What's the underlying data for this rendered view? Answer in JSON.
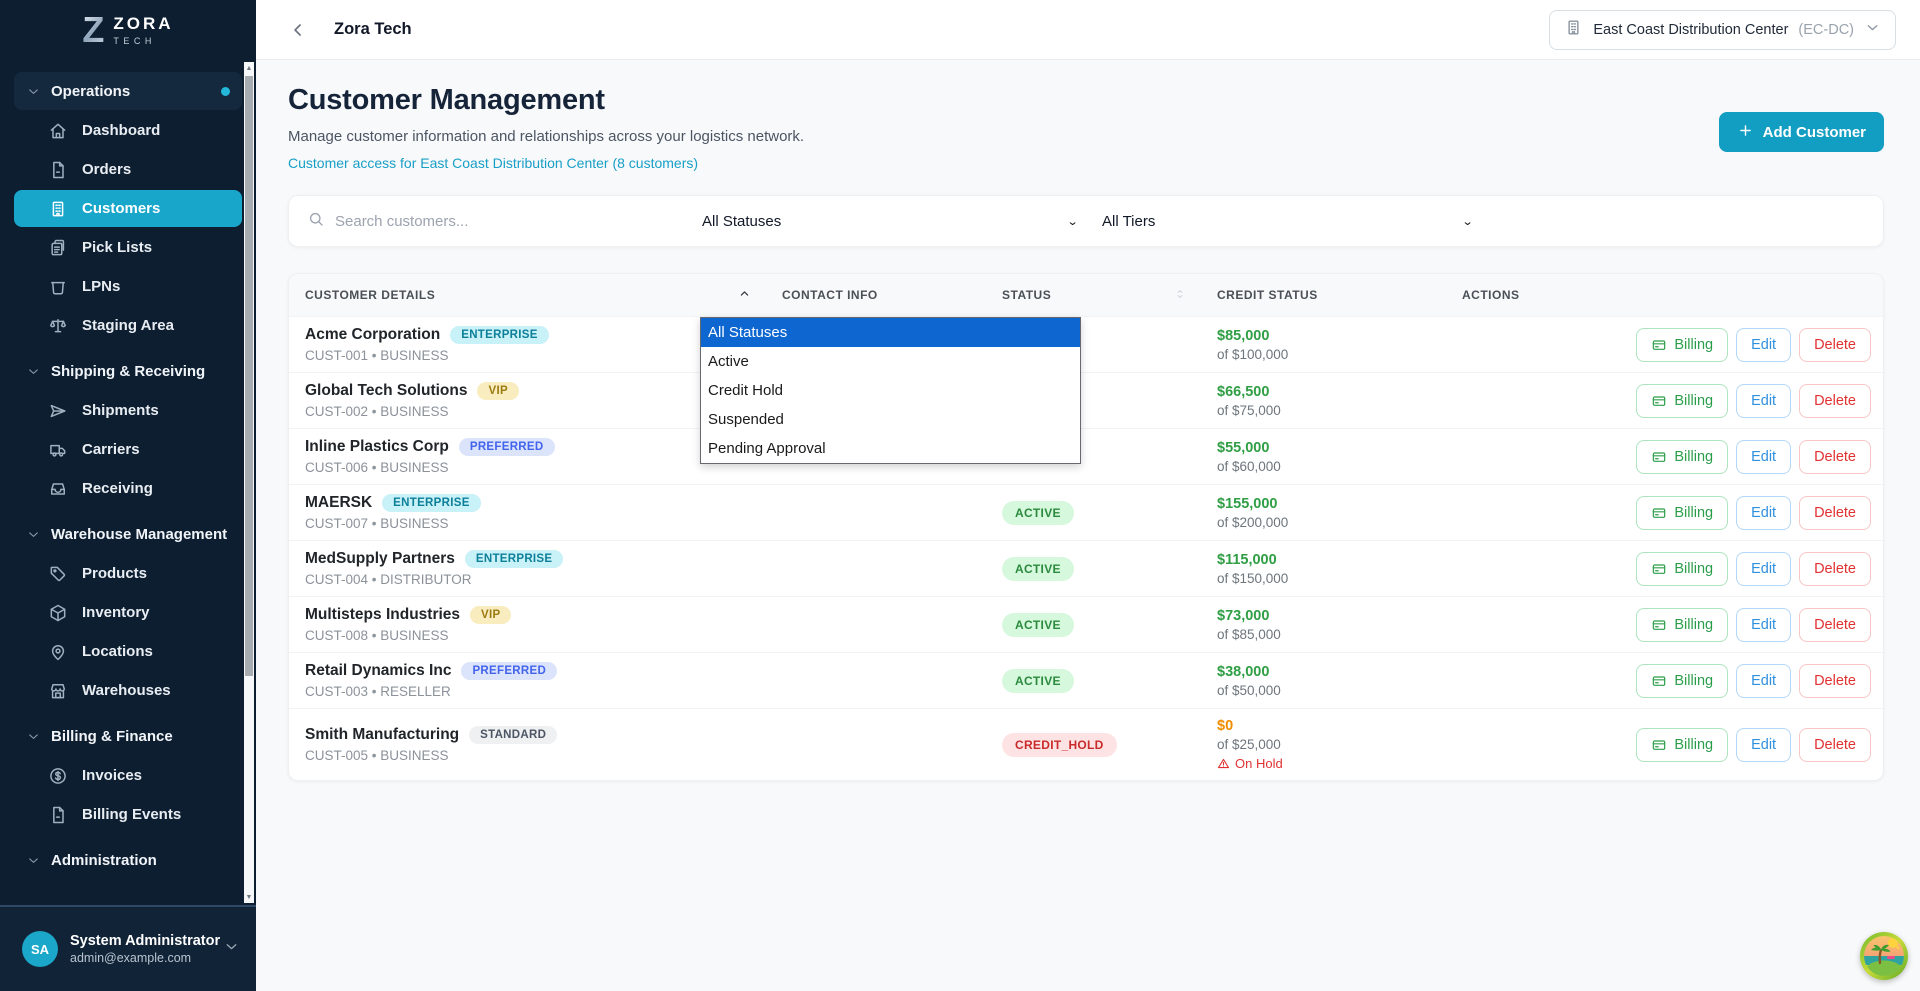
{
  "colors": {
    "accent_cyan": "#129dc2",
    "sidebar_bg": "#0d1e30",
    "active_item_bg": "#18a6ca",
    "link": "#189fc7",
    "dropdown_highlight": "#0e66d0",
    "success_green": "#2f9e44",
    "danger_red": "#e03131",
    "warning_orange": "#f08c00"
  },
  "sidebar": {
    "logo": {
      "z": "Z",
      "name": "ZORA",
      "sub": "TECH"
    },
    "sections": [
      {
        "label": "Operations",
        "active": true,
        "has_dot": true,
        "items": [
          {
            "label": "Dashboard",
            "icon": "home"
          },
          {
            "label": "Orders",
            "icon": "document"
          },
          {
            "label": "Customers",
            "icon": "building",
            "active": true
          },
          {
            "label": "Pick Lists",
            "icon": "clipboard"
          },
          {
            "label": "LPNs",
            "icon": "bin"
          },
          {
            "label": "Staging Area",
            "icon": "scales"
          }
        ]
      },
      {
        "label": "Shipping & Receiving",
        "active": false,
        "has_dot": false,
        "items": [
          {
            "label": "Shipments",
            "icon": "send"
          },
          {
            "label": "Carriers",
            "icon": "truck"
          },
          {
            "label": "Receiving",
            "icon": "inbox"
          }
        ]
      },
      {
        "label": "Warehouse Management",
        "active": false,
        "has_dot": false,
        "items": [
          {
            "label": "Products",
            "icon": "tag"
          },
          {
            "label": "Inventory",
            "icon": "cube"
          },
          {
            "label": "Locations",
            "icon": "pin"
          },
          {
            "label": "Warehouses",
            "icon": "store"
          }
        ]
      },
      {
        "label": "Billing & Finance",
        "active": false,
        "has_dot": false,
        "items": [
          {
            "label": "Invoices",
            "icon": "dollar"
          },
          {
            "label": "Billing Events",
            "icon": "document"
          }
        ]
      },
      {
        "label": "Administration",
        "active": false,
        "has_dot": false,
        "items": []
      }
    ],
    "user": {
      "initials": "SA",
      "name": "System Administrator",
      "email": "admin@example.com"
    }
  },
  "topbar": {
    "title": "Zora Tech",
    "facility": {
      "label": "East Coast Distribution Center",
      "code": "(EC-DC)"
    }
  },
  "page": {
    "title": "Customer Management",
    "subtitle": "Manage customer information and relationships across your logistics network.",
    "access_link": "Customer access for East Coast Distribution Center (8 customers)",
    "add_button": "Add Customer"
  },
  "filters": {
    "search_placeholder": "Search customers...",
    "status_filter": "All Statuses",
    "tier_filter": "All Tiers"
  },
  "status_dropdown": {
    "selected_index": 0,
    "options": [
      "All Statuses",
      "Active",
      "Credit Hold",
      "Suspended",
      "Pending Approval"
    ]
  },
  "table": {
    "columns": [
      {
        "label": "CUSTOMER DETAILS",
        "sort": "asc"
      },
      {
        "label": "CONTACT INFO",
        "sort": "none"
      },
      {
        "label": "STATUS",
        "sort": "both"
      },
      {
        "label": "CREDIT STATUS",
        "sort": "none"
      },
      {
        "label": "ACTIONS",
        "sort": "none"
      }
    ],
    "actions": {
      "billing": "Billing",
      "edit": "Edit",
      "delete": "Delete"
    },
    "rows": [
      {
        "name": "Acme Corporation",
        "tier": "ENTERPRISE",
        "tier_class": "enterprise",
        "meta": "CUST-001 • BUSINESS",
        "contact": "",
        "status": "",
        "status_class": "",
        "credit": "$85,000",
        "limit": "of $100,000",
        "credit_class": "",
        "hold": ""
      },
      {
        "name": "Global Tech Solutions",
        "tier": "VIP",
        "tier_class": "vip",
        "meta": "CUST-002 • BUSINESS",
        "contact": "",
        "status": "",
        "status_class": "",
        "credit": "$66,500",
        "limit": "of $75,000",
        "credit_class": "",
        "hold": ""
      },
      {
        "name": "Inline Plastics Corp",
        "tier": "PREFERRED",
        "tier_class": "preferred",
        "meta": "CUST-006 • BUSINESS",
        "contact": "",
        "status": "",
        "status_class": "",
        "credit": "$55,000",
        "limit": "of $60,000",
        "credit_class": "",
        "hold": ""
      },
      {
        "name": "MAERSK",
        "tier": "ENTERPRISE",
        "tier_class": "enterprise",
        "meta": "CUST-007 • BUSINESS",
        "contact": "",
        "status": "ACTIVE",
        "status_class": "active",
        "credit": "$155,000",
        "limit": "of $200,000",
        "credit_class": "",
        "hold": ""
      },
      {
        "name": "MedSupply Partners",
        "tier": "ENTERPRISE",
        "tier_class": "enterprise",
        "meta": "CUST-004 • DISTRIBUTOR",
        "contact": "",
        "status": "ACTIVE",
        "status_class": "active",
        "credit": "$115,000",
        "limit": "of $150,000",
        "credit_class": "",
        "hold": ""
      },
      {
        "name": "Multisteps Industries",
        "tier": "VIP",
        "tier_class": "vip",
        "meta": "CUST-008 • BUSINESS",
        "contact": "",
        "status": "ACTIVE",
        "status_class": "active",
        "credit": "$73,000",
        "limit": "of $85,000",
        "credit_class": "",
        "hold": ""
      },
      {
        "name": "Retail Dynamics Inc",
        "tier": "PREFERRED",
        "tier_class": "preferred",
        "meta": "CUST-003 • RESELLER",
        "contact": "",
        "status": "ACTIVE",
        "status_class": "active",
        "credit": "$38,000",
        "limit": "of $50,000",
        "credit_class": "",
        "hold": ""
      },
      {
        "name": "Smith Manufacturing",
        "tier": "STANDARD",
        "tier_class": "standard",
        "meta": "CUST-005 • BUSINESS",
        "contact": "",
        "status": "CREDIT_HOLD",
        "status_class": "credit_hold",
        "credit": "$0",
        "limit": "of $25,000",
        "credit_class": "warn",
        "hold": "On Hold"
      }
    ]
  }
}
